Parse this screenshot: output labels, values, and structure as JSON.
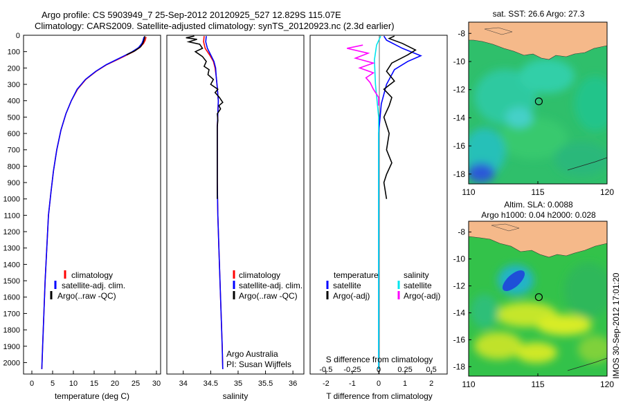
{
  "header": {
    "line1": "Argo profile: CS 5903949_7 25-Sep-2012 20120925_527 12.829S 115.07E",
    "line2": "Climatology: CARS2009. Satellite-adjusted climatology: synTS_20120923.nc (2.3d earlier)"
  },
  "colors": {
    "climatology": "#ff0000",
    "satellite": "#0000ff",
    "argo": "#000000",
    "sat_salinity": "#00e5ee",
    "argo_salinity_diff": "#ff00ff",
    "land": "#f5b98a"
  },
  "depth_axis": {
    "ticks": [
      "0",
      "100",
      "200",
      "300",
      "400",
      "500",
      "600",
      "700",
      "800",
      "900",
      "1000",
      "1100",
      "1200",
      "1300",
      "1400",
      "1500",
      "1600",
      "1700",
      "1800",
      "1900",
      "2000"
    ],
    "range": [
      0,
      2070
    ]
  },
  "chart_data": [
    {
      "id": "temperature",
      "type": "line",
      "xlabel": "temperature (deg C)",
      "xlim": [
        -2,
        31
      ],
      "xticks": [
        "0",
        "5",
        "10",
        "15",
        "20",
        "25",
        "30"
      ],
      "legend": [
        "climatology",
        "satellite-adj. clim.",
        "Argo(..raw -QC)"
      ],
      "series": [
        {
          "name": "climatology",
          "color": "#ff0000",
          "points": [
            [
              27.5,
              10
            ],
            [
              27.3,
              30
            ],
            [
              26.9,
              50
            ],
            [
              26.0,
              75
            ],
            [
              24.5,
              100
            ],
            [
              22.5,
              125
            ],
            [
              20.5,
              150
            ],
            [
              18.0,
              180
            ],
            [
              15.5,
              220
            ],
            [
              13.0,
              270
            ],
            [
              11.0,
              330
            ],
            [
              9.5,
              400
            ],
            [
              8.2,
              480
            ],
            [
              7.0,
              580
            ],
            [
              6.0,
              700
            ],
            [
              5.2,
              830
            ],
            [
              4.6,
              960
            ],
            [
              4.0,
              1100
            ],
            [
              3.6,
              1300
            ],
            [
              3.2,
              1500
            ],
            [
              2.9,
              1700
            ],
            [
              2.6,
              1900
            ],
            [
              2.4,
              2040
            ]
          ]
        },
        {
          "name": "satellite-adj. clim.",
          "color": "#0000ff",
          "points": [
            [
              27.0,
              10
            ],
            [
              26.8,
              30
            ],
            [
              26.5,
              50
            ],
            [
              25.7,
              75
            ],
            [
              24.2,
              100
            ],
            [
              22.3,
              125
            ],
            [
              20.3,
              150
            ],
            [
              17.9,
              180
            ],
            [
              15.4,
              220
            ],
            [
              12.9,
              270
            ],
            [
              10.9,
              330
            ],
            [
              9.5,
              400
            ],
            [
              8.2,
              480
            ],
            [
              7.0,
              580
            ],
            [
              6.0,
              700
            ],
            [
              5.2,
              830
            ],
            [
              4.6,
              960
            ],
            [
              4.0,
              1100
            ],
            [
              3.6,
              1300
            ],
            [
              3.2,
              1500
            ],
            [
              2.9,
              1700
            ],
            [
              2.6,
              1900
            ],
            [
              2.4,
              2040
            ]
          ]
        },
        {
          "name": "Argo(..raw -QC)",
          "color": "#000000",
          "points": [
            [
              27.2,
              5
            ],
            [
              27.1,
              20
            ],
            [
              26.8,
              45
            ],
            [
              26.2,
              70
            ],
            [
              24.8,
              95
            ],
            [
              22.8,
              120
            ]
          ]
        }
      ]
    },
    {
      "id": "salinity",
      "type": "line",
      "xlabel": "salinity",
      "xlim": [
        33.7,
        36.2
      ],
      "xticks": [
        "34",
        "34.5",
        "35",
        "35.5",
        "36"
      ],
      "legend": [
        "climatology",
        "satellite-adj. clim.",
        "Argo(..raw -QC)"
      ],
      "annotation": [
        "Argo Australia",
        "PI: Susan Wijffels"
      ],
      "series": [
        {
          "name": "climatology",
          "color": "#ff0000",
          "points": [
            [
              34.38,
              5
            ],
            [
              34.37,
              40
            ],
            [
              34.4,
              80
            ],
            [
              34.48,
              120
            ],
            [
              34.55,
              160
            ],
            [
              34.58,
              200
            ],
            [
              34.6,
              250
            ],
            [
              34.62,
              320
            ],
            [
              34.64,
              400
            ],
            [
              34.63,
              480
            ],
            [
              34.62,
              560
            ],
            [
              34.62,
              700
            ],
            [
              34.62,
              900
            ],
            [
              34.63,
              1100
            ],
            [
              34.65,
              1300
            ],
            [
              34.67,
              1500
            ],
            [
              34.69,
              1700
            ],
            [
              34.71,
              1900
            ],
            [
              34.72,
              2040
            ]
          ]
        },
        {
          "name": "satellite-adj. clim.",
          "color": "#0000ff",
          "points": [
            [
              34.42,
              5
            ],
            [
              34.41,
              40
            ],
            [
              34.44,
              80
            ],
            [
              34.5,
              120
            ],
            [
              34.56,
              160
            ],
            [
              34.59,
              200
            ],
            [
              34.6,
              250
            ],
            [
              34.62,
              320
            ],
            [
              34.64,
              400
            ],
            [
              34.63,
              480
            ],
            [
              34.62,
              560
            ],
            [
              34.62,
              700
            ],
            [
              34.62,
              900
            ],
            [
              34.63,
              1100
            ],
            [
              34.65,
              1300
            ],
            [
              34.67,
              1500
            ],
            [
              34.69,
              1700
            ],
            [
              34.71,
              1900
            ],
            [
              34.72,
              2040
            ]
          ]
        },
        {
          "name": "Argo(..raw -QC)",
          "color": "#000000",
          "points": [
            [
              34.2,
              5
            ],
            [
              34.05,
              15
            ],
            [
              34.25,
              25
            ],
            [
              34.1,
              40
            ],
            [
              34.3,
              55
            ],
            [
              34.35,
              80
            ],
            [
              34.22,
              100
            ],
            [
              34.35,
              130
            ],
            [
              34.42,
              160
            ],
            [
              34.38,
              190
            ],
            [
              34.47,
              210
            ],
            [
              34.45,
              240
            ],
            [
              34.55,
              270
            ],
            [
              34.5,
              300
            ],
            [
              34.63,
              330
            ],
            [
              34.58,
              350
            ],
            [
              34.66,
              380
            ],
            [
              34.72,
              410
            ],
            [
              34.65,
              430
            ],
            [
              34.68,
              450
            ],
            [
              34.62,
              480
            ],
            [
              34.63,
              520
            ],
            [
              34.62,
              560
            ],
            [
              34.62,
              600
            ],
            [
              34.62,
              700
            ],
            [
              34.62,
              800
            ],
            [
              34.62,
              900
            ],
            [
              34.62,
              1000
            ]
          ]
        }
      ]
    },
    {
      "id": "difference",
      "type": "line",
      "xlabel": "T difference from climatology",
      "xlim": [
        -2.6,
        2.6
      ],
      "xticks": [
        "-2",
        "-1",
        "0",
        "1",
        "2"
      ],
      "top_label": "S difference from climatology",
      "top_xlim": [
        -0.65,
        0.65
      ],
      "top_xticks": [
        "-0.5",
        "-0.25",
        "0",
        "0.25",
        "0.5"
      ],
      "legend_temperature_title": "temperature",
      "legend_salinity_title": "salinity",
      "legend_temperature": [
        "satellite",
        "Argo(-adj)"
      ],
      "legend_salinity": [
        "satellite",
        "Argo(-adj)"
      ],
      "series": [
        {
          "name": "temperature satellite",
          "color": "#0000ff",
          "scale": "T",
          "points": [
            [
              0.2,
              5
            ],
            [
              0.3,
              30
            ],
            [
              0.9,
              80
            ],
            [
              1.6,
              125
            ],
            [
              1.1,
              160
            ],
            [
              0.6,
              210
            ],
            [
              0.3,
              300
            ],
            [
              0.1,
              420
            ],
            [
              0.0,
              600
            ],
            [
              0.0,
              1000
            ],
            [
              0.0,
              1500
            ],
            [
              0.0,
              2040
            ]
          ]
        },
        {
          "name": "temperature Argo(-adj)",
          "color": "#000000",
          "scale": "T",
          "points": [
            [
              0.6,
              5
            ],
            [
              0.4,
              20
            ],
            [
              0.9,
              50
            ],
            [
              1.4,
              90
            ],
            [
              1.1,
              120
            ],
            [
              0.5,
              170
            ],
            [
              0.3,
              220
            ],
            [
              0.6,
              280
            ],
            [
              0.2,
              330
            ],
            [
              0.5,
              380
            ],
            [
              0.4,
              430
            ],
            [
              0.2,
              500
            ],
            [
              0.4,
              600
            ],
            [
              0.3,
              700
            ],
            [
              0.5,
              780
            ],
            [
              0.3,
              850
            ],
            [
              0.2,
              900
            ],
            [
              0.3,
              1000
            ]
          ]
        },
        {
          "name": "salinity satellite",
          "color": "#00e5ee",
          "scale": "S",
          "points": [
            [
              0.02,
              5
            ],
            [
              -0.02,
              60
            ],
            [
              -0.04,
              150
            ],
            [
              -0.03,
              300
            ],
            [
              0.0,
              500
            ],
            [
              0.0,
              1000
            ],
            [
              0.0,
              2040
            ]
          ]
        },
        {
          "name": "salinity Argo(-adj)",
          "color": "#ff00ff",
          "scale": "S",
          "points": [
            [
              -0.15,
              60
            ],
            [
              -0.3,
              80
            ],
            [
              -0.1,
              110
            ],
            [
              -0.22,
              140
            ],
            [
              -0.05,
              170
            ],
            [
              -0.18,
              200
            ],
            [
              -0.05,
              230
            ],
            [
              -0.12,
              260
            ],
            [
              -0.08,
              290
            ],
            [
              -0.05,
              330
            ],
            [
              0.0,
              380
            ],
            [
              0.0,
              430
            ]
          ]
        }
      ]
    },
    {
      "id": "sst_map",
      "type": "heatmap",
      "title": "sat. SST: 26.6 Argo: 27.3",
      "xticks": [
        "110",
        "115",
        "120"
      ],
      "yticks": [
        "-8",
        "-10",
        "-12",
        "-14",
        "-16",
        "-18"
      ],
      "xlim": [
        110,
        120
      ],
      "ylim": [
        -18.7,
        -7.2
      ],
      "marker": [
        115.07,
        -12.83
      ]
    },
    {
      "id": "sla_map",
      "type": "heatmap",
      "title": "Altim. SLA: 0.0088",
      "subtitle": "Argo h1000: 0.04 h2000: 0.028",
      "xticks": [
        "110",
        "115",
        "120"
      ],
      "yticks": [
        "-8",
        "-10",
        "-12",
        "-14",
        "-16",
        "-18"
      ],
      "xlim": [
        110,
        120
      ],
      "ylim": [
        -18.7,
        -7.2
      ],
      "marker": [
        115.07,
        -12.83
      ]
    }
  ],
  "footer": {
    "stamp": "IMOS 30-Sep-2012 17:01:20"
  }
}
